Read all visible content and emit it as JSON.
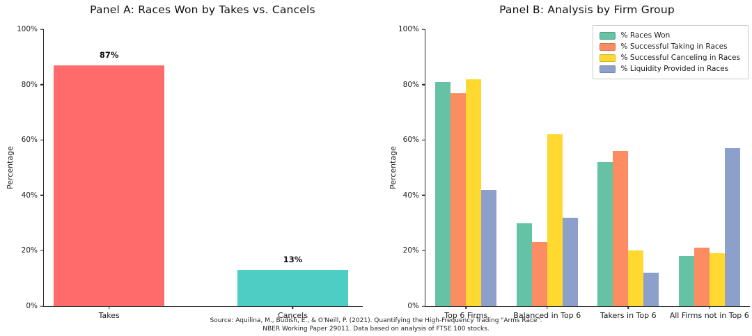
{
  "figure": {
    "source_line1": "Source: Aquilina, M., Budish, E., & O'Neill, P. (2021). Quantifying the High-Frequency Trading \"Arms Race\".",
    "source_line2": "NBER Working Paper 29011. Data based on analysis of FTSE 100 stocks."
  },
  "chart_data": [
    {
      "type": "bar",
      "title": "Panel A: Races Won by Takes vs. Cancels",
      "xlabel": "",
      "ylabel": "Percentage",
      "ylim": [
        0,
        100
      ],
      "grid": false,
      "yticks": [
        "0%",
        "20%",
        "40%",
        "60%",
        "80%",
        "100%"
      ],
      "categories": [
        "Takes",
        "Cancels"
      ],
      "values": [
        87,
        13
      ],
      "bar_labels": [
        "87%",
        "13%"
      ],
      "colors": [
        "#ff6b6b",
        "#4ecdc4"
      ]
    },
    {
      "type": "bar",
      "title": "Panel B: Analysis by Firm Group",
      "xlabel": "",
      "ylabel": "Percentage",
      "ylim": [
        0,
        100
      ],
      "grid": false,
      "legend_position": "upper right",
      "yticks": [
        "0%",
        "20%",
        "40%",
        "60%",
        "80%",
        "100%"
      ],
      "categories": [
        "Top 6 Firms",
        "Balanced in Top 6",
        "Takers in Top 6",
        "All Firms not in Top 6"
      ],
      "series": [
        {
          "name": "% Races Won",
          "color": "#66c2a5",
          "values": [
            81,
            30,
            52,
            18
          ]
        },
        {
          "name": "% Successful Taking in Races",
          "color": "#fc8d62",
          "values": [
            77,
            23,
            56,
            21
          ]
        },
        {
          "name": "% Successful Canceling in Races",
          "color": "#ffd92f",
          "values": [
            82,
            62,
            20,
            19
          ]
        },
        {
          "name": "% Liquidity Provided in Races",
          "color": "#8da0cb",
          "values": [
            42,
            32,
            12,
            57
          ]
        }
      ]
    }
  ]
}
